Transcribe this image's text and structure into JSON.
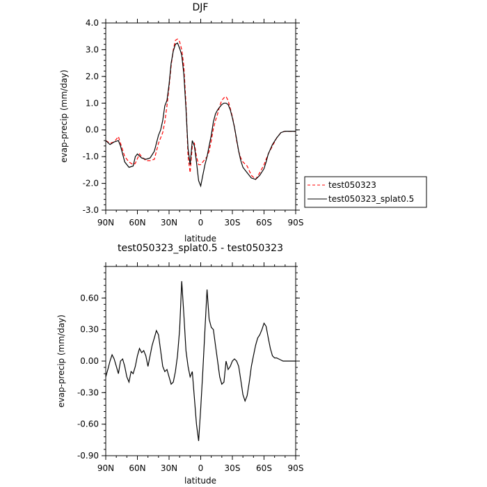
{
  "chart_data": [
    {
      "type": "line",
      "title": "DJF",
      "xlabel": "latitude",
      "ylabel": "evap-precip (mm/day)",
      "xlim": [
        90,
        -90
      ],
      "ylim": [
        -3.0,
        4.0
      ],
      "x_ticks": [
        90,
        60,
        30,
        0,
        -30,
        -60,
        -90
      ],
      "x_tick_labels": [
        "90N",
        "60N",
        "30N",
        "0",
        "30S",
        "60S",
        "90S"
      ],
      "y_ticks": [
        -3.0,
        -2.0,
        -1.0,
        0.0,
        1.0,
        2.0,
        3.0,
        4.0
      ],
      "y_tick_labels": [
        "-3.0",
        "-2.0",
        "-1.0",
        "0.0",
        "1.0",
        "2.0",
        "3.0",
        "4.0"
      ],
      "legend": "outside-right",
      "series": [
        {
          "name": "test050323",
          "color": "#ff0000",
          "dash": "dashed",
          "x": [
            90,
            86,
            82,
            78,
            76,
            72,
            68,
            64,
            62,
            58,
            56,
            52,
            48,
            44,
            40,
            38,
            36,
            34,
            32,
            30,
            28,
            26,
            24,
            22,
            20,
            18,
            16,
            14,
            12,
            10,
            8,
            6,
            4,
            2,
            0,
            -2,
            -4,
            -6,
            -8,
            -10,
            -12,
            -14,
            -16,
            -18,
            -20,
            -22,
            -24,
            -26,
            -28,
            -30,
            -32,
            -34,
            -36,
            -38,
            -40,
            -44,
            -48,
            -52,
            -56,
            -60,
            -62,
            -64,
            -68,
            -72,
            -76,
            -80,
            -84,
            -88,
            -90
          ],
          "y": [
            -0.4,
            -0.5,
            -0.45,
            -0.25,
            -0.5,
            -1.0,
            -1.2,
            -1.3,
            -1.25,
            -0.9,
            -1.0,
            -1.15,
            -1.15,
            -1.1,
            -0.5,
            -0.3,
            -0.1,
            0.3,
            0.9,
            1.6,
            2.4,
            3.0,
            3.35,
            3.4,
            3.3,
            3.0,
            2.4,
            1.0,
            -1.0,
            -1.6,
            -0.6,
            -0.5,
            -1.0,
            -1.3,
            -1.3,
            -1.2,
            -1.1,
            -1.0,
            -0.8,
            -0.4,
            0.05,
            0.35,
            0.6,
            0.9,
            1.1,
            1.2,
            1.25,
            1.1,
            0.8,
            0.5,
            0.1,
            -0.4,
            -0.8,
            -1.05,
            -1.2,
            -1.35,
            -1.7,
            -1.85,
            -1.6,
            -1.3,
            -1.1,
            -0.9,
            -0.6,
            -0.3,
            -0.1,
            -0.05,
            -0.05,
            -0.05,
            -0.05
          ]
        },
        {
          "name": "test050323_splat0.5",
          "color": "#000000",
          "dash": "solid",
          "x": [
            90,
            86,
            82,
            78,
            76,
            72,
            68,
            64,
            62,
            60,
            56,
            52,
            48,
            44,
            40,
            38,
            36,
            34,
            32,
            30,
            28,
            26,
            24,
            22,
            20,
            18,
            16,
            14,
            12,
            10,
            8,
            6,
            4,
            2,
            0,
            -2,
            -4,
            -6,
            -8,
            -10,
            -12,
            -14,
            -16,
            -18,
            -20,
            -22,
            -24,
            -26,
            -28,
            -30,
            -32,
            -34,
            -36,
            -38,
            -40,
            -44,
            -48,
            -52,
            -56,
            -60,
            -62,
            -64,
            -68,
            -72,
            -76,
            -80,
            -84,
            -88,
            -90
          ],
          "y": [
            -0.4,
            -0.55,
            -0.45,
            -0.4,
            -0.6,
            -1.2,
            -1.4,
            -1.35,
            -1.0,
            -0.9,
            -1.05,
            -1.1,
            -1.05,
            -0.8,
            -0.2,
            0.0,
            0.35,
            0.9,
            1.1,
            1.7,
            2.5,
            2.95,
            3.2,
            3.25,
            3.05,
            2.8,
            2.1,
            0.8,
            -0.7,
            -1.3,
            -0.4,
            -0.6,
            -1.2,
            -1.9,
            -2.1,
            -1.7,
            -1.3,
            -1.0,
            -0.6,
            -0.2,
            0.3,
            0.6,
            0.75,
            0.85,
            0.95,
            1.0,
            1.0,
            0.95,
            0.75,
            0.45,
            0.1,
            -0.35,
            -0.8,
            -1.15,
            -1.4,
            -1.6,
            -1.8,
            -1.85,
            -1.7,
            -1.45,
            -1.2,
            -0.9,
            -0.55,
            -0.3,
            -0.1,
            -0.05,
            -0.05,
            -0.05,
            -0.05
          ]
        }
      ]
    },
    {
      "type": "line",
      "title": "test050323_splat0.5 - test050323",
      "xlabel": "latitude",
      "ylabel": "evap-precip (mm/day)",
      "xlim": [
        90,
        -90
      ],
      "ylim": [
        -0.9,
        0.9
      ],
      "x_ticks": [
        90,
        60,
        30,
        0,
        -30,
        -60,
        -90
      ],
      "x_tick_labels": [
        "90N",
        "60N",
        "30N",
        "0",
        "30S",
        "60S",
        "90S"
      ],
      "y_ticks": [
        -0.9,
        -0.6,
        -0.3,
        0.0,
        0.3,
        0.6
      ],
      "y_tick_labels": [
        "-0.90",
        "-0.60",
        "-0.30",
        "0.00",
        "0.30",
        "0.60"
      ],
      "legend": "none",
      "series": [
        {
          "name": "",
          "color": "#000000",
          "dash": "solid",
          "x": [
            90,
            88,
            86,
            84,
            82,
            80,
            78,
            76,
            74,
            72,
            70,
            68,
            66,
            64,
            62,
            60,
            58,
            56,
            54,
            52,
            50,
            48,
            46,
            44,
            42,
            40,
            38,
            36,
            34,
            32,
            30,
            28,
            26,
            24,
            22,
            20,
            18,
            16,
            14,
            12,
            10,
            8,
            6,
            4,
            2,
            0,
            -2,
            -4,
            -6,
            -8,
            -10,
            -12,
            -14,
            -16,
            -18,
            -20,
            -22,
            -24,
            -26,
            -28,
            -30,
            -32,
            -34,
            -36,
            -38,
            -40,
            -42,
            -44,
            -46,
            -48,
            -50,
            -52,
            -54,
            -56,
            -58,
            -60,
            -62,
            -64,
            -66,
            -68,
            -70,
            -72,
            -74,
            -76,
            -78,
            -80,
            -82,
            -84,
            -86,
            -88,
            -90
          ],
          "y": [
            -0.15,
            -0.08,
            0.0,
            0.06,
            0.02,
            -0.05,
            -0.12,
            0.0,
            0.02,
            -0.05,
            -0.15,
            -0.2,
            -0.1,
            -0.12,
            -0.05,
            0.05,
            0.12,
            0.08,
            0.1,
            0.05,
            -0.05,
            0.05,
            0.15,
            0.22,
            0.29,
            0.25,
            0.1,
            -0.05,
            -0.1,
            -0.08,
            -0.15,
            -0.22,
            -0.2,
            -0.1,
            0.05,
            0.3,
            0.76,
            0.45,
            0.1,
            -0.05,
            -0.15,
            -0.1,
            -0.35,
            -0.6,
            -0.76,
            -0.45,
            -0.1,
            0.3,
            0.68,
            0.4,
            0.32,
            0.3,
            0.15,
            0.0,
            -0.15,
            -0.22,
            -0.2,
            0.0,
            -0.08,
            -0.05,
            0.0,
            0.02,
            0.0,
            -0.05,
            -0.18,
            -0.32,
            -0.38,
            -0.33,
            -0.2,
            -0.05,
            0.05,
            0.15,
            0.22,
            0.25,
            0.3,
            0.36,
            0.33,
            0.22,
            0.12,
            0.05,
            0.03,
            0.03,
            0.02,
            0.01,
            0.0,
            0.0,
            0.0,
            0.0,
            0.0,
            0.0,
            0.0
          ]
        }
      ]
    }
  ]
}
